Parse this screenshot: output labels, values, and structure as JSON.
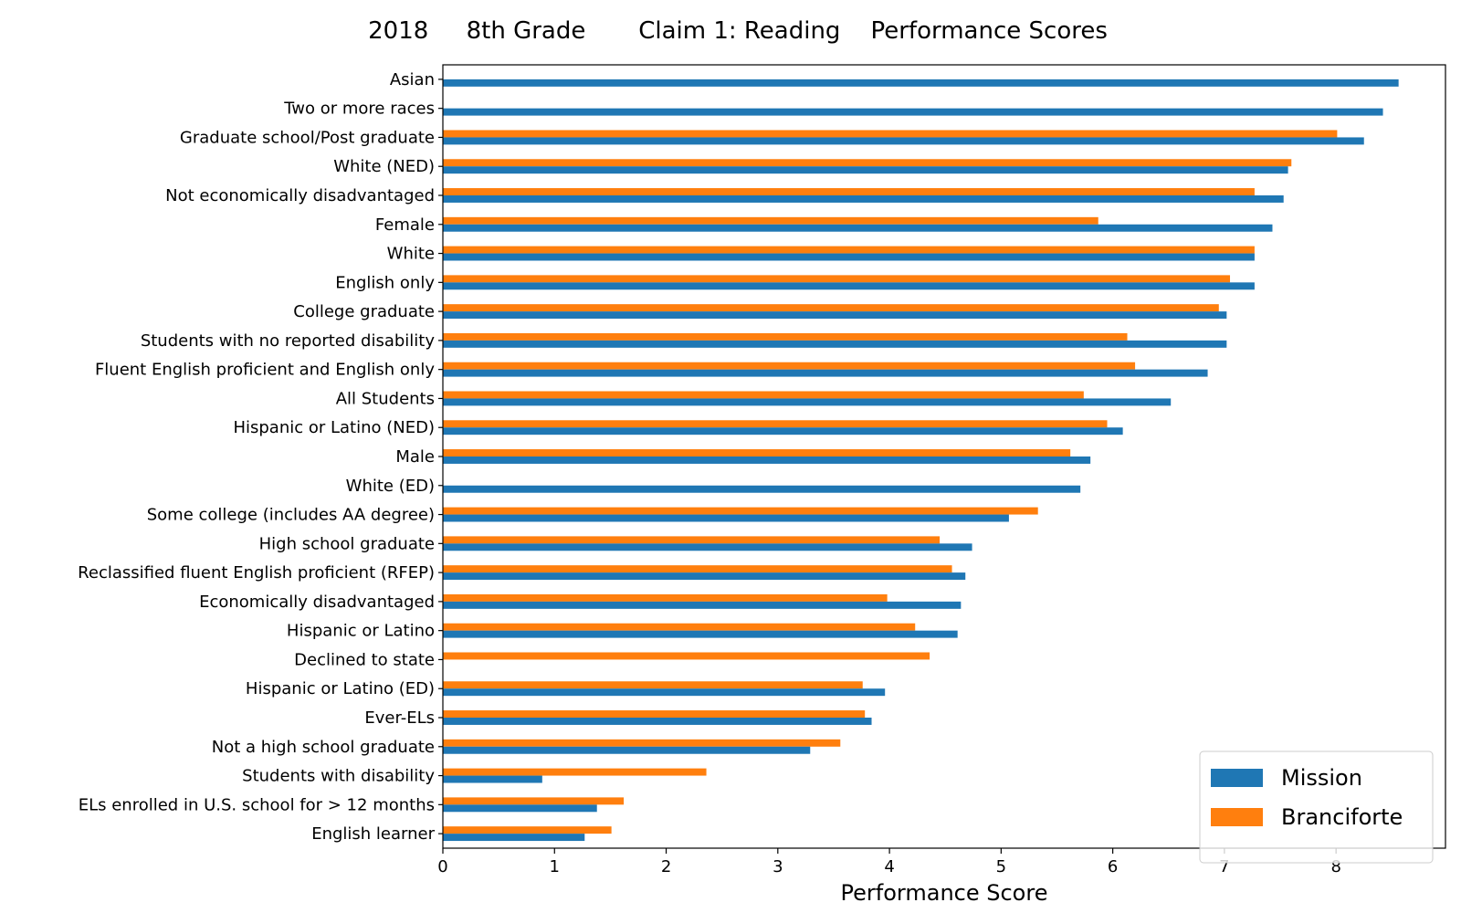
{
  "chart_data": {
    "type": "bar",
    "orientation": "horizontal",
    "title": "2018     8th Grade       Claim 1: Reading    Performance Scores",
    "xlabel": "Performance Score",
    "ylabel": "",
    "xlim": [
      0,
      8.98
    ],
    "xticks": [
      "0",
      "1",
      "2",
      "3",
      "4",
      "5",
      "6",
      "7",
      "8"
    ],
    "grid": false,
    "legend_position": "lower-right",
    "categories": [
      "Asian",
      "Two or more races",
      "Graduate school/Post graduate",
      "White (NED)",
      "Not economically disadvantaged",
      "Female",
      "White",
      "English only",
      "College graduate",
      "Students with no reported disability",
      "Fluent English proficient and English only",
      "All Students",
      "Hispanic or Latino (NED)",
      "Male",
      "White (ED)",
      "Some college (includes AA degree)",
      "High school graduate",
      "Reclassified fluent English proficient (RFEP)",
      "Economically disadvantaged",
      "Hispanic or Latino",
      "Declined to state",
      "Hispanic or Latino (ED)",
      "Ever-ELs",
      "Not a high school graduate",
      "Students with disability",
      "ELs enrolled in U.S. school for > 12 months",
      "English learner"
    ],
    "series": [
      {
        "name": "Mission",
        "color": "#1f77b4",
        "values": [
          8.56,
          8.42,
          8.25,
          7.57,
          7.53,
          7.43,
          7.27,
          7.27,
          7.02,
          7.02,
          6.85,
          6.52,
          6.09,
          5.8,
          5.71,
          5.07,
          4.74,
          4.68,
          4.64,
          4.61,
          null,
          3.96,
          3.84,
          3.29,
          0.89,
          1.38,
          1.27
        ]
      },
      {
        "name": "Branciforte",
        "color": "#ff7f0e",
        "values": [
          null,
          null,
          8.01,
          7.6,
          7.27,
          5.87,
          7.27,
          7.05,
          6.95,
          6.13,
          6.2,
          5.74,
          5.95,
          5.62,
          null,
          5.33,
          4.45,
          4.56,
          3.98,
          4.23,
          4.36,
          3.76,
          3.78,
          3.56,
          2.36,
          1.62,
          1.51
        ]
      }
    ]
  }
}
